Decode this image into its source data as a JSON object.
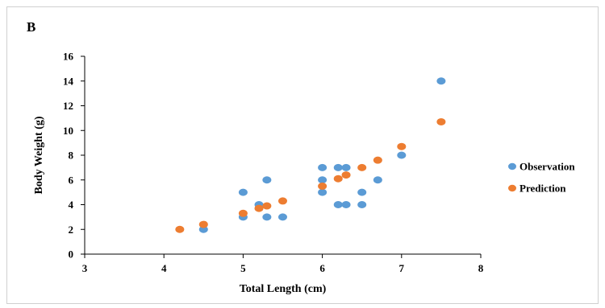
{
  "panel_label": "B",
  "chart_data": {
    "type": "scatter",
    "xlabel": "Total Length (cm)",
    "ylabel": "Body Weight (g)",
    "xlim": [
      3,
      8
    ],
    "ylim": [
      0,
      16
    ],
    "xticks": [
      "3",
      "4",
      "5",
      "6",
      "7",
      "8"
    ],
    "yticks": [
      "0",
      "2",
      "4",
      "6",
      "8",
      "10",
      "12",
      "14",
      "16"
    ],
    "grid": false,
    "legend_position": "right",
    "series": [
      {
        "name": "Observation",
        "color": "#5b9bd5",
        "points": [
          [
            4.5,
            2
          ],
          [
            5.0,
            5
          ],
          [
            5.0,
            3
          ],
          [
            5.2,
            4
          ],
          [
            5.3,
            6
          ],
          [
            5.3,
            3
          ],
          [
            5.5,
            3
          ],
          [
            6.0,
            7
          ],
          [
            6.0,
            6
          ],
          [
            6.0,
            5
          ],
          [
            6.2,
            7
          ],
          [
            6.2,
            4
          ],
          [
            6.3,
            7
          ],
          [
            6.3,
            4
          ],
          [
            6.5,
            5
          ],
          [
            6.5,
            4
          ],
          [
            6.7,
            6
          ],
          [
            7.0,
            8
          ],
          [
            7.5,
            14
          ]
        ]
      },
      {
        "name": "Prediction",
        "color": "#ed7d31",
        "points": [
          [
            4.2,
            2
          ],
          [
            4.5,
            2.4
          ],
          [
            5.0,
            3.3
          ],
          [
            5.2,
            3.7
          ],
          [
            5.3,
            3.9
          ],
          [
            5.5,
            4.3
          ],
          [
            6.0,
            5.5
          ],
          [
            6.2,
            6.1
          ],
          [
            6.3,
            6.4
          ],
          [
            6.5,
            7.0
          ],
          [
            6.7,
            7.6
          ],
          [
            7.0,
            8.7
          ],
          [
            7.5,
            10.7
          ]
        ]
      }
    ]
  }
}
